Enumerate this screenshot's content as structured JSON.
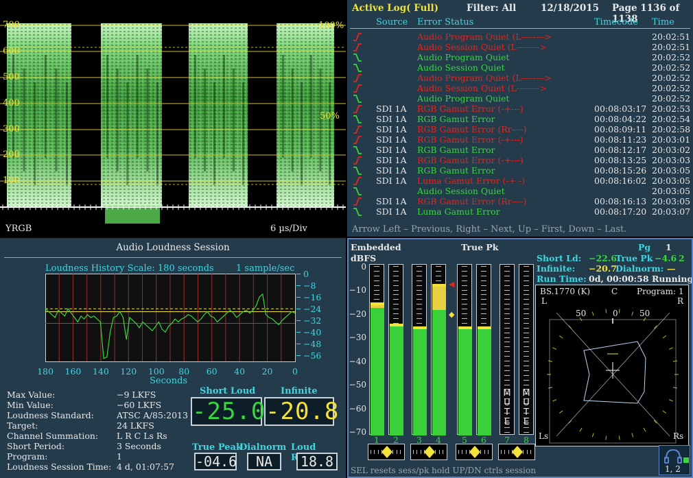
{
  "waveform": {
    "mode_label": "YRGB",
    "scale_label": "6 µs/Div",
    "y_ticks": [
      "700",
      "600",
      "500",
      "400",
      "300",
      "200",
      "100"
    ],
    "pct_100": "100%",
    "pct_50": "50%"
  },
  "log": {
    "title": "Active Log( Full)",
    "filter": "Filter: All",
    "date": "12/18/2015",
    "page": "Page 1136 of 1138",
    "headers": {
      "source": "Source",
      "status": "Error Status",
      "timecode": "Timecode",
      "time": "Time"
    },
    "rows": [
      {
        "state": "err",
        "source": "",
        "status": "Audio Program Quiet (L-------->",
        "timecode": "",
        "time": "20:02:51"
      },
      {
        "state": "err",
        "source": "",
        "status": "Audio Session Quiet (L-------->",
        "timecode": "",
        "time": "20:02:51"
      },
      {
        "state": "ok",
        "source": "",
        "status": "Audio Program Quiet",
        "timecode": "",
        "time": "20:02:52"
      },
      {
        "state": "ok",
        "source": "",
        "status": "Audio Session Quiet",
        "timecode": "",
        "time": "20:02:52"
      },
      {
        "state": "err",
        "source": "",
        "status": "Audio Program Quiet (L-------->",
        "timecode": "",
        "time": "20:02:52"
      },
      {
        "state": "err",
        "source": "",
        "status": "Audio Session Quiet (L-------->",
        "timecode": "",
        "time": "20:02:52"
      },
      {
        "state": "ok",
        "source": "",
        "status": "Audio Program Quiet",
        "timecode": "",
        "time": "20:02:52"
      },
      {
        "state": "err",
        "source": "SDI 1A",
        "status": "RGB Gamut Error (-+---)",
        "timecode": "00:08:03:17",
        "time": "20:02:53"
      },
      {
        "state": "ok",
        "source": "SDI 1A",
        "status": "RGB Gamut Error",
        "timecode": "00:08:04:22",
        "time": "20:02:54"
      },
      {
        "state": "err",
        "source": "SDI 1A",
        "status": "RGB Gamut Error (Rr----)",
        "timecode": "00:08:09:11",
        "time": "20:02:58"
      },
      {
        "state": "err",
        "source": "SDI 1A",
        "status": "RGB Gamut Error (-+---)",
        "timecode": "00:08:11:23",
        "time": "20:03:01"
      },
      {
        "state": "ok",
        "source": "SDI 1A",
        "status": "RGB Gamut Error",
        "timecode": "00:08:12:17",
        "time": "20:03:02"
      },
      {
        "state": "err",
        "source": "SDI 1A",
        "status": "RGB Gamut Error (-+---)",
        "timecode": "00:08:13:25",
        "time": "20:03:03"
      },
      {
        "state": "ok",
        "source": "SDI 1A",
        "status": "RGB Gamut Error",
        "timecode": "00:08:15:26",
        "time": "20:03:05"
      },
      {
        "state": "err",
        "source": "SDI 1A",
        "status": "Luma Gamut Error (-+ -)",
        "timecode": "00:08:16:02",
        "time": "20:03:05"
      },
      {
        "state": "ok",
        "source": "",
        "status": "Audio Session Quiet",
        "timecode": "",
        "time": "20:03:05"
      },
      {
        "state": "err",
        "source": "SDI 1A",
        "status": "RGB Gamut Error (Rr----)",
        "timecode": "00:08:16:13",
        "time": "20:03:05"
      },
      {
        "state": "ok",
        "source": "SDI 1A",
        "status": "Luma Gamut Error",
        "timecode": "00:08:17:20",
        "time": "20:03:07"
      }
    ],
    "footer": "Arrow Left – Previous, Right – Next, Up – First, Down – Last."
  },
  "loudness": {
    "title": "Audio Loudness Session",
    "history_label": "Loudness History Scale: 180 seconds",
    "rate_label": "1 sample/sec",
    "x_ticks": [
      "180",
      "160",
      "140",
      "120",
      "100",
      "80",
      "60",
      "40",
      "20",
      "0"
    ],
    "x_label": "Seconds",
    "y_ticks": [
      "0",
      "−8",
      "−16",
      "−24",
      "−32",
      "−40",
      "−48",
      "−56"
    ],
    "stats": [
      {
        "label": "Max Value:",
        "value": "−9 LKFS"
      },
      {
        "label": "Min Value:",
        "value": "−60 LKFS"
      },
      {
        "label": "Loudness Standard:",
        "value": "ATSC A/85:2013"
      },
      {
        "label": "Target:",
        "value": "24 LKFS"
      },
      {
        "label": "Channel Summation:",
        "value": "L R C Ls Rs"
      },
      {
        "label": "Short Period:",
        "value": "3 Seconds"
      },
      {
        "label": "Program:",
        "value": "1"
      },
      {
        "label": "Loudness Session Time:",
        "value": "4 d, 01:07:57"
      }
    ],
    "short_loud_label": "Short Loud",
    "short_loud_value": "-25.0",
    "infinite_label": "Infinite",
    "infinite_value": "-20.8",
    "true_peak_label": "True Peak",
    "true_peak_value": "-04.6",
    "dialnorm_label": "Dialnorm",
    "dialnorm_value": "NA",
    "loud_range_label": "Loud Range",
    "loud_range_value": "18.8"
  },
  "audio": {
    "source_label": "Embedded",
    "unit_label": "dBFS",
    "peak_label": "True Pk",
    "pg_label": "Pg",
    "pg_value": "1",
    "short_ld_label": "Short Ld:",
    "short_ld_value": "−22.6",
    "true_pk_label": "True Pk",
    "true_pk_value": "−4.6",
    "true_pk_suffix": "2",
    "infinite_label": "Infinite:",
    "infinite_value": "−20.7",
    "dialnorm_label": "Dialnorm:",
    "dialnorm_value": "—",
    "run_time_label": "Run Time:",
    "run_time_value": "0d, 00:00:58",
    "run_state": "Running",
    "scale_ticks": [
      "0",
      "−10",
      "−20",
      "−30",
      "−40",
      "−50",
      "−60",
      "−70"
    ],
    "meters": [
      {
        "label": "1",
        "level_db": -17,
        "peak_db": -16,
        "mute": false
      },
      {
        "label": "2",
        "level_db": -25,
        "peak_db": -25,
        "mute": false
      },
      {
        "label": "3",
        "level_db": -26,
        "peak_db": -26,
        "mute": false
      },
      {
        "label": "4",
        "level_db": -18,
        "peak_db": -8,
        "mute": false
      },
      {
        "label": "5",
        "level_db": -26,
        "peak_db": -26,
        "mute": false
      },
      {
        "label": "6",
        "level_db": -26,
        "peak_db": -26,
        "mute": false
      },
      {
        "label": "7",
        "level_db": -70,
        "peak_db": -70,
        "mute": true
      },
      {
        "label": "8",
        "level_db": -70,
        "peak_db": -70,
        "mute": true
      }
    ],
    "mute_letters": [
      "M",
      "U",
      "T",
      "E"
    ],
    "surround_title": "BS.1770 (K)",
    "surround_c": "C",
    "surround_program": "Program: 1",
    "surround_ticks": [
      "50",
      "0",
      "50"
    ],
    "surround_l": "L",
    "surround_r": "R",
    "surround_ls": "Ls",
    "surround_rs": "Rs",
    "footer": "SEL resets sess/pk hold  UP/DN ctrls session",
    "headphone_label": "1, 2"
  },
  "colors": {
    "panel_bg": "#233b4b",
    "accent_yellow": "#f2e23a",
    "accent_cyan": "#3fd6e0",
    "ok_green": "#39d63f",
    "err_red": "#e8231c"
  }
}
